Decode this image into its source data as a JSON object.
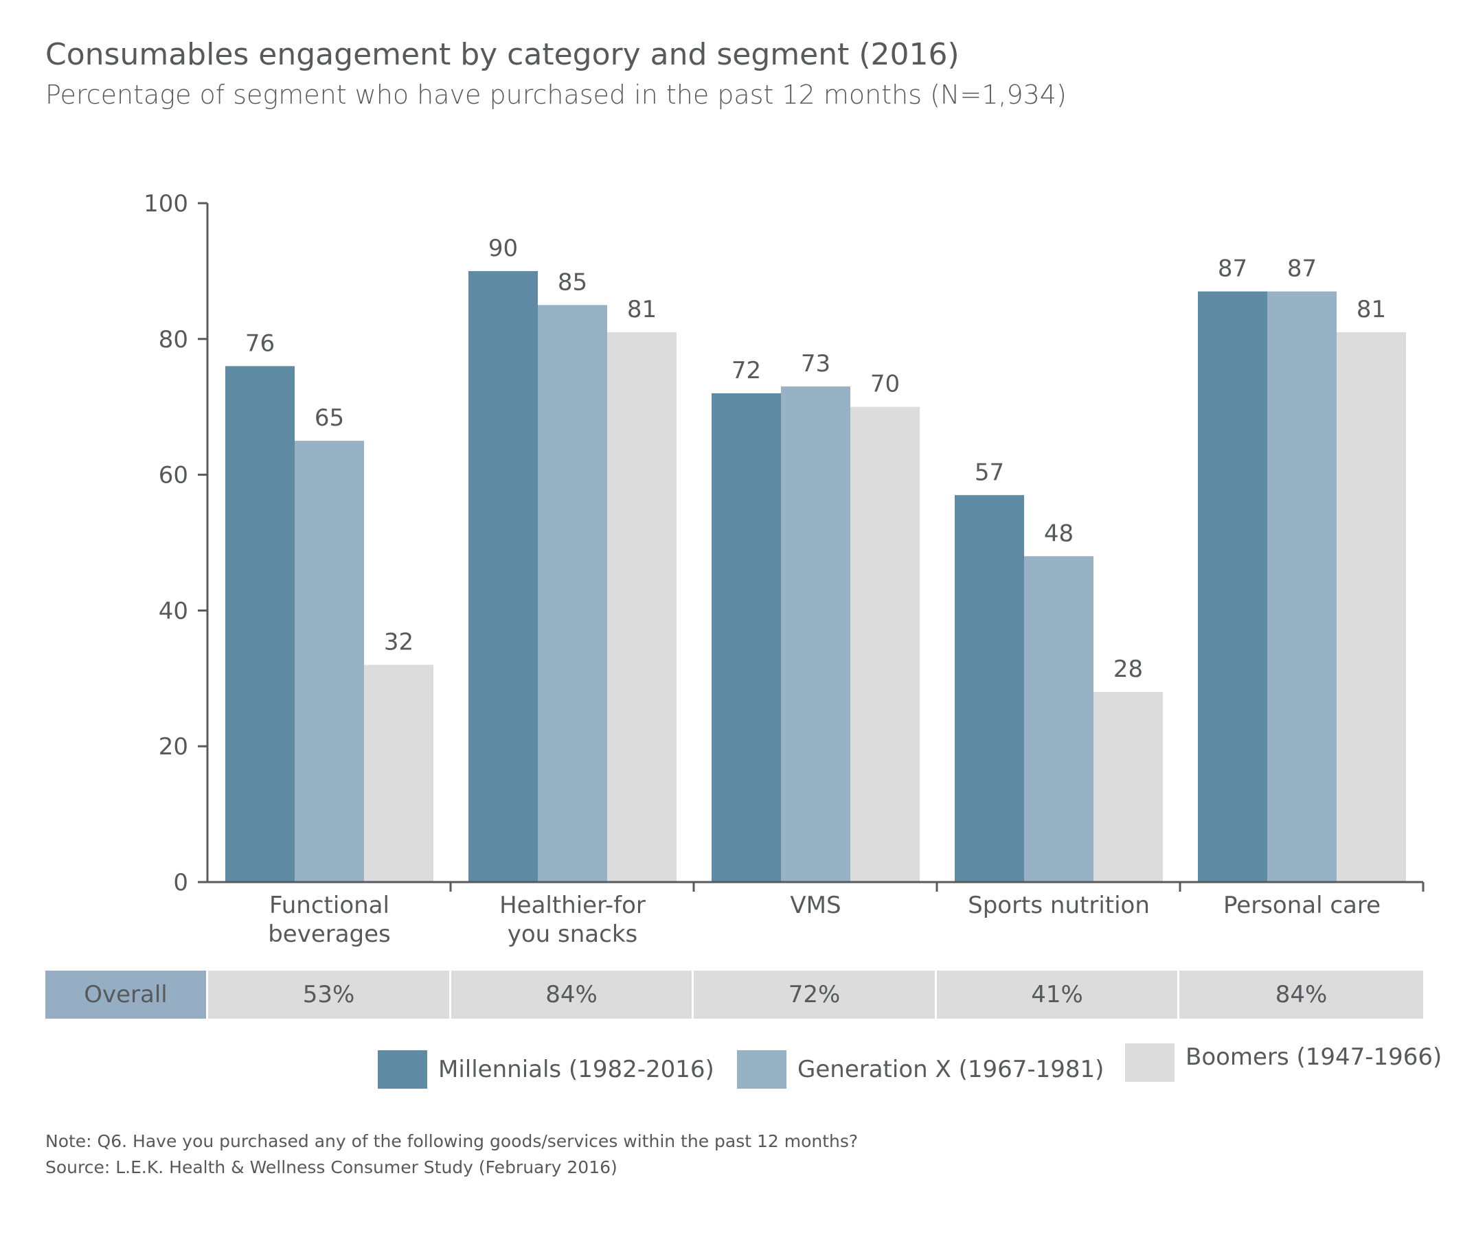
{
  "chart_data": {
    "type": "bar",
    "title": "Consumables engagement by category and segment (2016)",
    "subtitle": "Percentage of segment who have purchased in the past 12 months (N=1,934)",
    "categories": [
      [
        "Functional",
        "beverages"
      ],
      [
        "Healthier-for",
        "you snacks"
      ],
      [
        "VMS"
      ],
      [
        "Sports nutrition"
      ],
      [
        "Personal care"
      ]
    ],
    "series": [
      {
        "name": "Millennials (1982-2016)",
        "color": "#5e8aa4",
        "values": [
          76,
          90,
          72,
          57,
          87
        ]
      },
      {
        "name": "Generation X (1967-1981)",
        "color": "#97b1c5",
        "values": [
          65,
          85,
          73,
          48,
          87
        ]
      },
      {
        "name": "Boomers (1947-1966)",
        "color": "#dcdcdc",
        "values": [
          32,
          81,
          70,
          28,
          81
        ]
      }
    ],
    "ylim": [
      0,
      100
    ],
    "yticks": [
      0,
      20,
      40,
      60,
      80,
      100
    ],
    "grid": false,
    "legend_position": "bottom"
  },
  "overall": {
    "label": "Overall",
    "values": [
      "53%",
      "84%",
      "72%",
      "41%",
      "84%"
    ]
  },
  "notes": {
    "note": "Note: Q6. Have you purchased any of the following goods/services within the past 12 months?",
    "source": "Source: L.E.K. Health & Wellness Consumer Study (February 2016)"
  }
}
